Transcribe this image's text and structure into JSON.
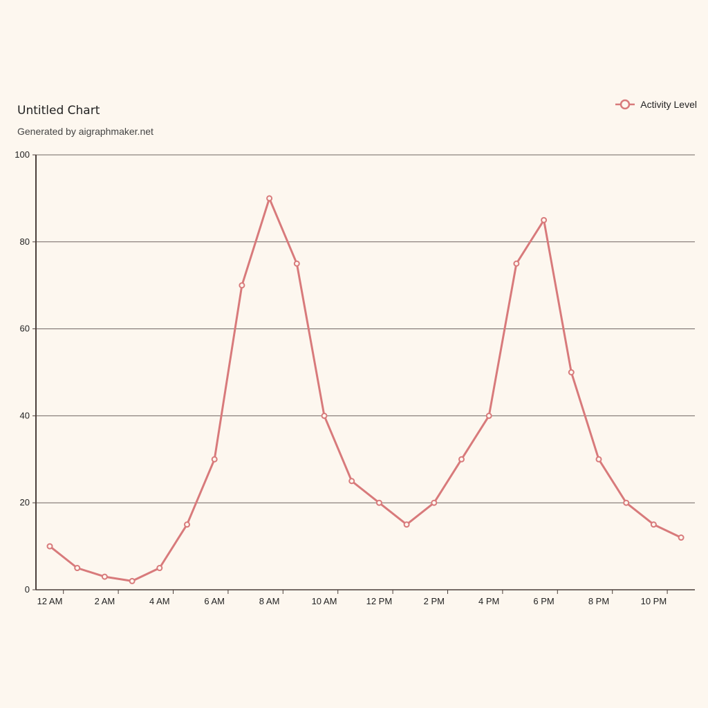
{
  "header": {
    "title": "Untitled Chart",
    "subtitle": "Generated by aigraphmaker.net"
  },
  "legend": {
    "label": "Activity Level",
    "placement": "top-right"
  },
  "colors": {
    "series": "#d87a7b",
    "grid": "#6e6460",
    "axis": "#4a3e3a",
    "background": "#fdf7ef"
  },
  "chart_data": {
    "type": "line",
    "title": "Untitled Chart",
    "subtitle": "Generated by aigraphmaker.net",
    "xlabel": "",
    "ylabel": "",
    "ylim": [
      0,
      100
    ],
    "yticks": [
      0,
      20,
      40,
      60,
      80,
      100
    ],
    "grid": true,
    "x": [
      "12 AM",
      "1 AM",
      "2 AM",
      "3 AM",
      "4 AM",
      "5 AM",
      "6 AM",
      "7 AM",
      "8 AM",
      "9 AM",
      "10 AM",
      "11 AM",
      "12 PM",
      "1 PM",
      "2 PM",
      "3 PM",
      "4 PM",
      "5 PM",
      "6 PM",
      "7 PM",
      "8 PM",
      "9 PM",
      "10 PM",
      "11 PM"
    ],
    "xtick_labels": [
      "12 AM",
      "2 AM",
      "4 AM",
      "6 AM",
      "8 AM",
      "10 AM",
      "12 PM",
      "2 PM",
      "4 PM",
      "6 PM",
      "8 PM",
      "10 PM"
    ],
    "series": [
      {
        "name": "Activity Level",
        "values": [
          10,
          5,
          3,
          2,
          5,
          15,
          30,
          70,
          90,
          75,
          40,
          25,
          20,
          15,
          20,
          30,
          40,
          75,
          85,
          50,
          30,
          20,
          15,
          12
        ]
      }
    ]
  }
}
